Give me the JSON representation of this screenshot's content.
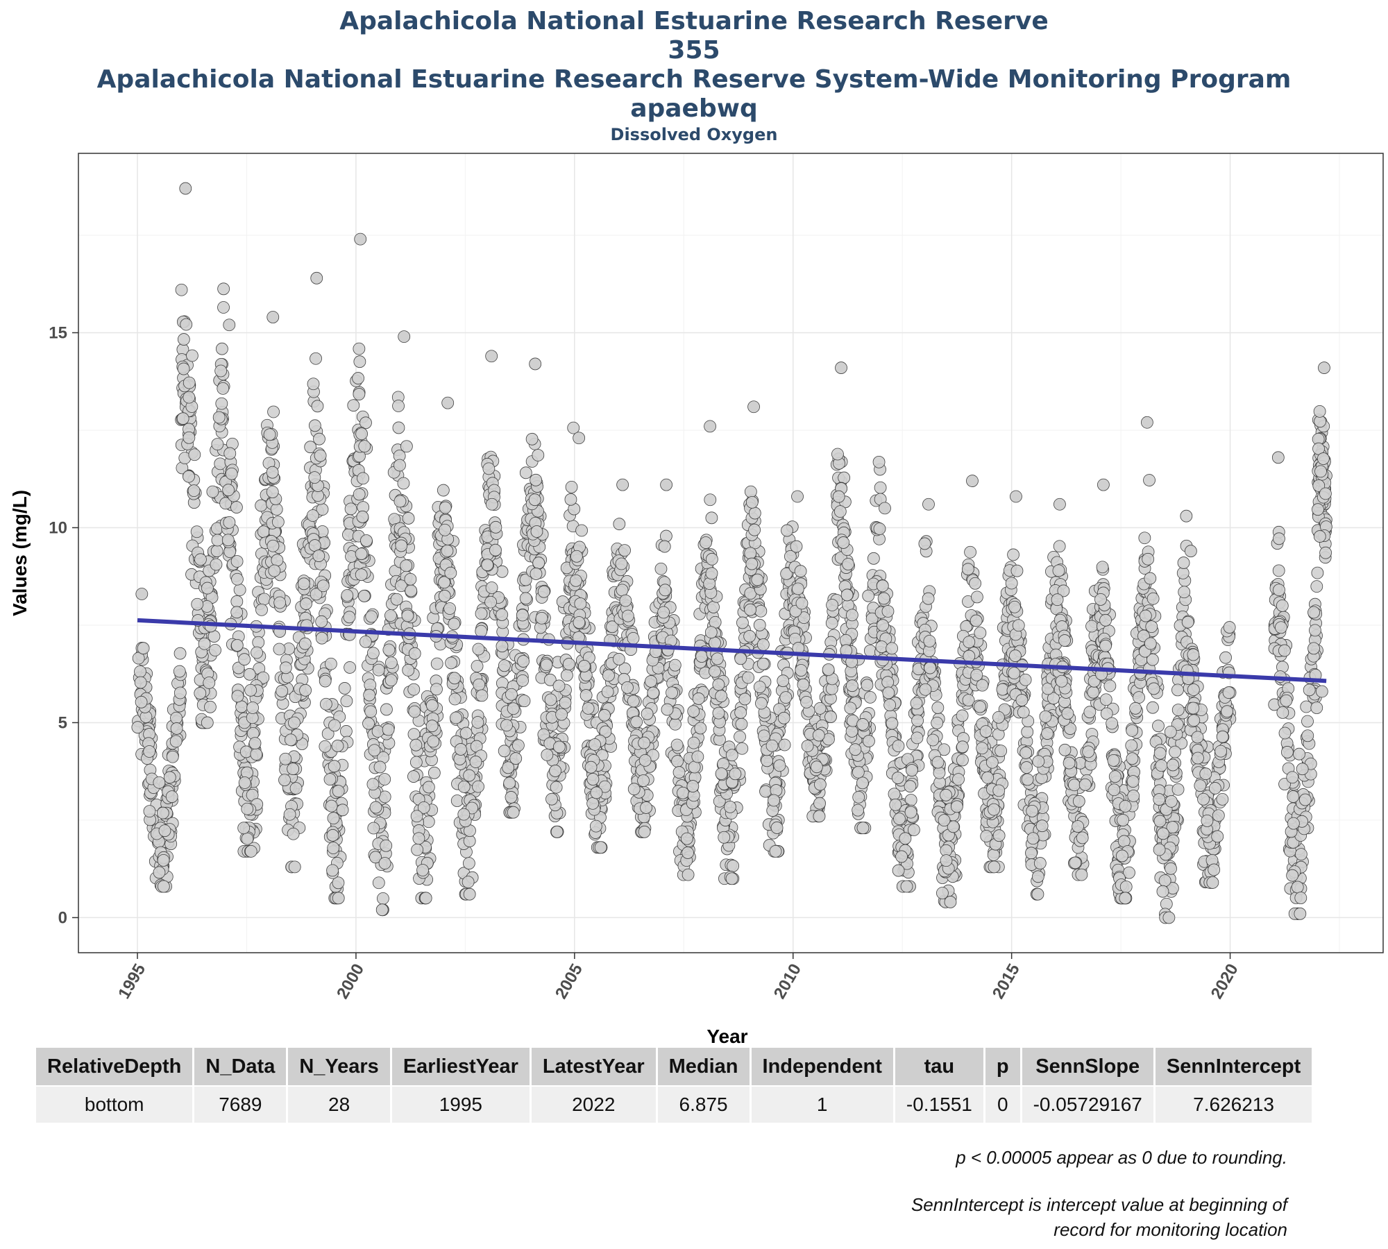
{
  "titles": {
    "line1": "Apalachicola National Estuarine Research Reserve",
    "line2": "355",
    "line3": "Apalachicola National Estuarine Research Reserve System-Wide Monitoring Program",
    "line4": "apaebwq",
    "subtitle": "Dissolved Oxygen"
  },
  "chart_data": {
    "type": "scatter",
    "xlabel": "Year",
    "ylabel": "Values (mg/L)",
    "xlim": [
      1993.65,
      2023.5
    ],
    "ylim": [
      -0.9,
      19.6
    ],
    "xticks": [
      1995,
      2000,
      2005,
      2010,
      2015,
      2020
    ],
    "yticks": [
      0,
      5,
      10,
      15
    ],
    "grid": true,
    "point_color": "#d0d0d0",
    "point_stroke": "#404040",
    "trend_color": "#3a3aaa",
    "trend_line": {
      "x": [
        1995.0,
        2022.2
      ],
      "y": [
        7.626,
        6.07
      ]
    },
    "year_ranges": [
      {
        "year": 1995,
        "min": 0.8,
        "max": 8.3
      },
      {
        "year": 1996,
        "min": 5.0,
        "max": 18.7
      },
      {
        "year": 1997,
        "min": 1.7,
        "max": 15.2
      },
      {
        "year": 1998,
        "min": 1.3,
        "max": 15.4
      },
      {
        "year": 1999,
        "min": 0.5,
        "max": 16.4
      },
      {
        "year": 2000,
        "min": 0.2,
        "max": 17.4
      },
      {
        "year": 2001,
        "min": 0.5,
        "max": 14.9
      },
      {
        "year": 2002,
        "min": 0.6,
        "max": 13.2
      },
      {
        "year": 2003,
        "min": 2.7,
        "max": 14.4
      },
      {
        "year": 2004,
        "min": 2.2,
        "max": 14.2
      },
      {
        "year": 2005,
        "min": 1.8,
        "max": 12.3
      },
      {
        "year": 2006,
        "min": 2.2,
        "max": 11.1
      },
      {
        "year": 2007,
        "min": 1.1,
        "max": 11.1
      },
      {
        "year": 2008,
        "min": 1.0,
        "max": 12.6
      },
      {
        "year": 2009,
        "min": 1.7,
        "max": 13.1
      },
      {
        "year": 2010,
        "min": 2.6,
        "max": 10.8
      },
      {
        "year": 2011,
        "min": 2.3,
        "max": 14.1
      },
      {
        "year": 2012,
        "min": 0.8,
        "max": 10.5
      },
      {
        "year": 2013,
        "min": 0.4,
        "max": 10.6
      },
      {
        "year": 2014,
        "min": 1.3,
        "max": 11.2
      },
      {
        "year": 2015,
        "min": 0.6,
        "max": 10.8
      },
      {
        "year": 2016,
        "min": 1.1,
        "max": 10.6
      },
      {
        "year": 2017,
        "min": 0.5,
        "max": 11.1
      },
      {
        "year": 2018,
        "min": 0.0,
        "max": 12.7
      },
      {
        "year": 2019,
        "min": 0.9,
        "max": 9.4
      },
      {
        "year": 2021,
        "min": 0.1,
        "max": 11.8
      },
      {
        "year": 2022,
        "min": 5.8,
        "max": 14.1
      }
    ]
  },
  "table": {
    "headers": [
      "RelativeDepth",
      "N_Data",
      "N_Years",
      "EarliestYear",
      "LatestYear",
      "Median",
      "Independent",
      "tau",
      "p",
      "SennSlope",
      "SennIntercept"
    ],
    "rows": [
      [
        "bottom",
        "7689",
        "28",
        "1995",
        "2022",
        "6.875",
        "1",
        "-0.1551",
        "0",
        "-0.05729167",
        "7.626213"
      ]
    ]
  },
  "notes": {
    "p_note": "p < 0.00005 appear as 0 due to rounding.",
    "intercept_note_line1": "SennIntercept is intercept value at beginning of",
    "intercept_note_line2": "record for monitoring location"
  }
}
